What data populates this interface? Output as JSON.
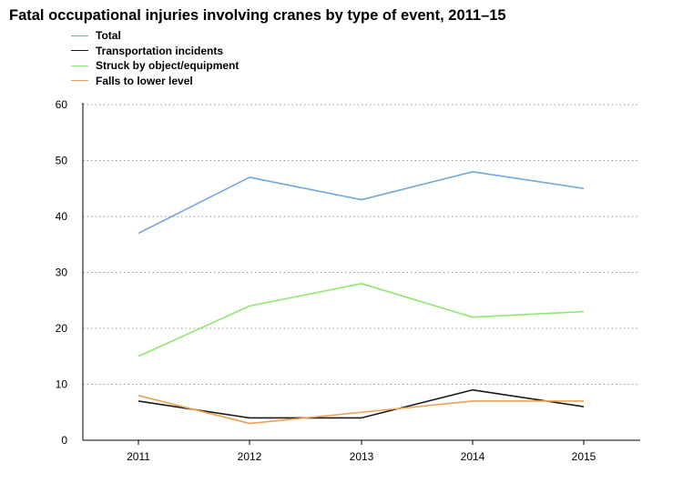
{
  "title": "Fatal occupational injuries involving cranes by type of event, 2011–15",
  "chart_data": {
    "type": "line",
    "title": "Fatal occupational injuries involving cranes by type of event, 2011–15",
    "xlabel": "",
    "ylabel": "",
    "categories": [
      "2011",
      "2012",
      "2013",
      "2014",
      "2015"
    ],
    "ylim": [
      0,
      60
    ],
    "yticks": [
      0,
      10,
      20,
      30,
      40,
      50,
      60
    ],
    "grid": "horizontal dotted",
    "legend_position": "top-left",
    "series": [
      {
        "name": "Total",
        "color": "#6fa8dc",
        "values": [
          37,
          47,
          43,
          48,
          45
        ]
      },
      {
        "name": "Transportation incidents",
        "color": "#1a1a1a",
        "values": [
          7,
          4,
          4,
          9,
          6
        ]
      },
      {
        "name": "Struck by object/equipment",
        "color": "#8ee86e",
        "values": [
          15,
          24,
          28,
          22,
          23
        ]
      },
      {
        "name": "Falls to lower level",
        "color": "#f0a050",
        "values": [
          8,
          3,
          5,
          7,
          7
        ]
      }
    ]
  }
}
